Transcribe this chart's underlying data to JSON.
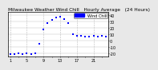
{
  "title": "Milwaukee Weather Wind Chill   Hourly Average   (24 Hours)",
  "bg_color": "#e8e8e8",
  "plot_bg": "#ffffff",
  "line_color": "#0000ff",
  "grid_color": "#bbbbbb",
  "y_ticks": [
    40,
    30,
    20,
    10,
    0,
    -10,
    -20
  ],
  "y_labels": [
    "40",
    "30",
    "20",
    "10",
    "0",
    "-10",
    "-20"
  ],
  "ylim": [
    -25,
    45
  ],
  "xlim": [
    0.5,
    24.5
  ],
  "hours": [
    1,
    2,
    3,
    4,
    5,
    6,
    7,
    8,
    9,
    10,
    11,
    12,
    13,
    14,
    15,
    16,
    17,
    18,
    19,
    20,
    21,
    22,
    23,
    24
  ],
  "wind_chill": [
    -21,
    -21,
    -20,
    -21,
    -20,
    -21,
    -20,
    -5,
    18,
    28,
    33,
    36,
    38,
    34,
    28,
    10,
    8,
    7,
    6,
    6,
    7,
    6,
    7,
    6
  ],
  "legend_label": "Wind Chill",
  "legend_color": "#0000ff",
  "marker_size": 1.8,
  "title_fontsize": 4.2,
  "tick_fontsize": 3.5,
  "dpi": 100
}
